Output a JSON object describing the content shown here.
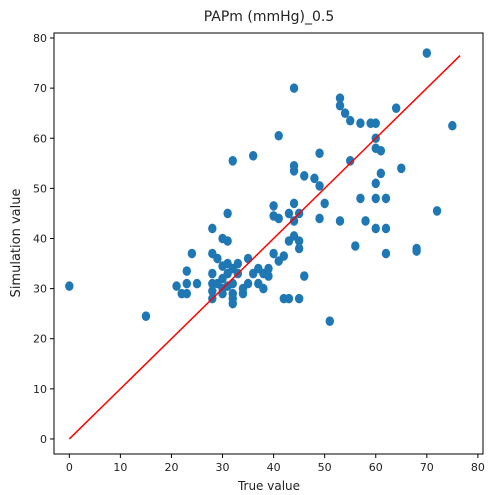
{
  "chart_data": {
    "type": "scatter",
    "title": "PAPm (mmHg)_0.5",
    "xlabel": "True value",
    "ylabel": "Simulation value",
    "xlim": [
      -3,
      81
    ],
    "ylim": [
      -3,
      81
    ],
    "xticks": [
      0,
      10,
      20,
      30,
      40,
      50,
      60,
      70,
      80
    ],
    "yticks": [
      0,
      10,
      20,
      30,
      40,
      50,
      60,
      70,
      80
    ],
    "grid": false,
    "point_color": "#1f77b4",
    "line_color": "#ff0000",
    "reference_line": {
      "x": [
        0,
        76.5
      ],
      "y": [
        0,
        76.5
      ]
    },
    "points": [
      [
        0,
        30.5
      ],
      [
        15,
        24.5
      ],
      [
        21,
        30.5
      ],
      [
        22,
        29
      ],
      [
        23,
        33.5
      ],
      [
        23,
        31
      ],
      [
        23,
        29
      ],
      [
        24,
        37
      ],
      [
        25,
        31
      ],
      [
        28,
        42
      ],
      [
        28,
        37
      ],
      [
        28,
        33
      ],
      [
        28,
        31
      ],
      [
        28,
        29.5
      ],
      [
        28,
        28
      ],
      [
        29,
        36
      ],
      [
        29,
        31
      ],
      [
        30,
        40
      ],
      [
        30,
        34.5
      ],
      [
        30,
        32
      ],
      [
        30,
        30
      ],
      [
        30,
        29
      ],
      [
        31,
        45
      ],
      [
        31,
        39.5
      ],
      [
        31,
        35
      ],
      [
        31,
        33
      ],
      [
        31,
        30.5
      ],
      [
        32,
        55.5
      ],
      [
        32,
        34
      ],
      [
        32,
        31
      ],
      [
        32,
        29
      ],
      [
        32,
        28
      ],
      [
        32,
        27
      ],
      [
        33,
        35
      ],
      [
        33,
        33
      ],
      [
        34,
        30
      ],
      [
        34,
        29
      ],
      [
        35,
        36
      ],
      [
        35,
        31
      ],
      [
        36,
        56.5
      ],
      [
        36,
        33
      ],
      [
        37,
        34
      ],
      [
        37,
        31
      ],
      [
        38,
        33
      ],
      [
        38,
        30
      ],
      [
        39,
        34
      ],
      [
        39,
        32.5
      ],
      [
        40,
        46.5
      ],
      [
        40,
        44.5
      ],
      [
        40,
        37
      ],
      [
        41,
        60.5
      ],
      [
        41,
        44
      ],
      [
        41,
        35.5
      ],
      [
        42,
        36.5
      ],
      [
        42,
        28
      ],
      [
        43,
        45
      ],
      [
        43,
        39.5
      ],
      [
        43,
        28
      ],
      [
        44,
        70
      ],
      [
        44,
        54.5
      ],
      [
        44,
        53.5
      ],
      [
        44,
        47
      ],
      [
        44,
        43.5
      ],
      [
        44,
        40.5
      ],
      [
        45,
        45
      ],
      [
        45,
        39.5
      ],
      [
        45,
        38
      ],
      [
        45,
        28
      ],
      [
        46,
        52.5
      ],
      [
        46,
        32.5
      ],
      [
        48,
        52
      ],
      [
        49,
        57
      ],
      [
        49,
        50.5
      ],
      [
        49,
        44
      ],
      [
        50,
        47
      ],
      [
        51,
        23.5
      ],
      [
        53,
        68
      ],
      [
        53,
        66.5
      ],
      [
        53,
        43.5
      ],
      [
        54,
        65
      ],
      [
        55,
        63.5
      ],
      [
        55,
        55.5
      ],
      [
        56,
        38.5
      ],
      [
        57,
        63
      ],
      [
        57,
        48
      ],
      [
        58,
        43.5
      ],
      [
        59,
        63
      ],
      [
        60,
        63
      ],
      [
        60,
        60
      ],
      [
        60,
        58
      ],
      [
        60,
        51
      ],
      [
        60,
        48
      ],
      [
        60,
        42
      ],
      [
        61,
        57.5
      ],
      [
        61,
        53
      ],
      [
        62,
        48
      ],
      [
        62,
        42
      ],
      [
        62,
        37
      ],
      [
        64,
        66
      ],
      [
        65,
        54
      ],
      [
        68,
        38
      ],
      [
        68,
        37.5
      ],
      [
        70,
        77
      ],
      [
        72,
        45.5
      ],
      [
        75,
        62.5
      ]
    ]
  }
}
